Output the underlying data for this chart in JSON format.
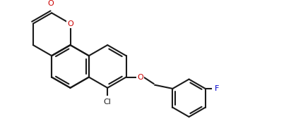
{
  "background_color": "#ffffff",
  "figsize": [
    4.29,
    1.89
  ],
  "dpi": 100,
  "line_color": "#1a1a1a",
  "atom_color_O": "#cc0000",
  "atom_color_Cl": "#000000",
  "atom_color_F": "#0000cc",
  "lw": 1.5,
  "label_O": "O",
  "label_Cl": "Cl",
  "label_F": "F"
}
